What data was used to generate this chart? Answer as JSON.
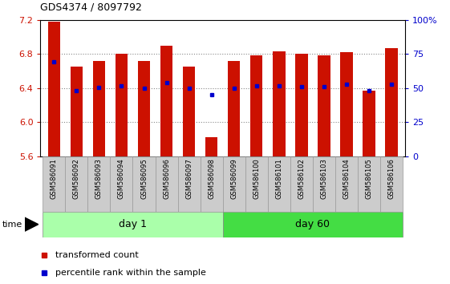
{
  "title": "GDS4374 / 8097792",
  "samples": [
    "GSM586091",
    "GSM586092",
    "GSM586093",
    "GSM586094",
    "GSM586095",
    "GSM586096",
    "GSM586097",
    "GSM586098",
    "GSM586099",
    "GSM586100",
    "GSM586101",
    "GSM586102",
    "GSM586103",
    "GSM586104",
    "GSM586105",
    "GSM586106"
  ],
  "bar_heights": [
    7.18,
    6.65,
    6.72,
    6.8,
    6.72,
    6.9,
    6.65,
    5.82,
    6.72,
    6.78,
    6.83,
    6.8,
    6.78,
    6.82,
    6.37,
    6.87
  ],
  "percentile_values": [
    6.71,
    6.37,
    6.41,
    6.43,
    6.4,
    6.46,
    6.4,
    6.32,
    6.4,
    6.43,
    6.43,
    6.42,
    6.42,
    6.44,
    6.37,
    6.44
  ],
  "ylim_left": [
    5.6,
    7.2
  ],
  "ylim_right": [
    0,
    100
  ],
  "yticks_left": [
    5.6,
    6.0,
    6.4,
    6.8,
    7.2
  ],
  "yticks_right": [
    0,
    25,
    50,
    75,
    100
  ],
  "ytick_right_labels": [
    "0",
    "25",
    "50",
    "75",
    "100%"
  ],
  "bar_color": "#CC1100",
  "percentile_color": "#0000CC",
  "day1_color": "#AAFFAA",
  "day60_color": "#44DD44",
  "day1_samples": 8,
  "day60_samples": 8,
  "day1_label": "day 1",
  "day60_label": "day 60",
  "time_label": "time",
  "legend_bar_label": "transformed count",
  "legend_pct_label": "percentile rank within the sample",
  "grid_color": "#888888",
  "bar_width": 0.55,
  "base_value": 5.6,
  "label_bg_color": "#CCCCCC",
  "label_edge_color": "#999999"
}
